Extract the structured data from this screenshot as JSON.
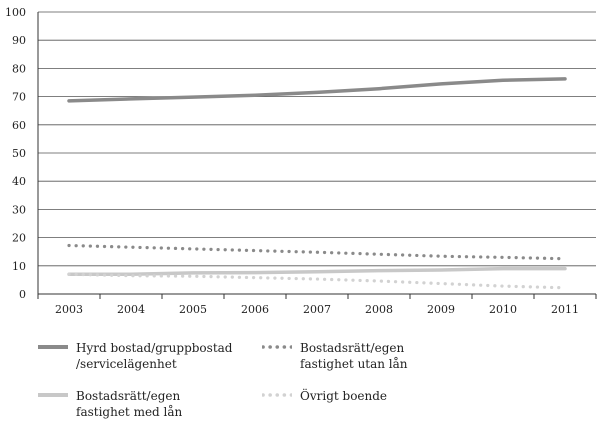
{
  "chart_data": {
    "type": "line",
    "title": "",
    "xlabel": "",
    "ylabel": "",
    "x": [
      "2003",
      "2004",
      "2005",
      "2006",
      "2007",
      "2008",
      "2009",
      "2010",
      "2011"
    ],
    "ylim": [
      0,
      100
    ],
    "yticks": [
      "0",
      "10",
      "20",
      "30",
      "40",
      "50",
      "60",
      "70",
      "80",
      "90",
      "100"
    ],
    "grid": true,
    "legend_position": "bottom",
    "series": [
      {
        "name": "Hyrd bostad/gruppbostad\n/servicelägenhet",
        "values": [
          68.5,
          69.2,
          69.8,
          70.5,
          71.5,
          72.8,
          74.5,
          75.8,
          76.3
        ],
        "color": "#8a8a8a",
        "style": "solid"
      },
      {
        "name": "Bostadsrätt/egen\nfastighet utan lån",
        "values": [
          17.2,
          16.6,
          16.0,
          15.4,
          14.8,
          14.1,
          13.4,
          13.0,
          12.5
        ],
        "color": "#8a8a8a",
        "style": "dotted"
      },
      {
        "name": "Bostadsrätt/egen\nfastighet med lån",
        "values": [
          7.0,
          7.0,
          7.5,
          7.6,
          7.9,
          8.3,
          8.5,
          9.0,
          9.0
        ],
        "color": "#c8c8c8",
        "style": "solid"
      },
      {
        "name": "Övrigt boende",
        "values": [
          7.0,
          6.5,
          6.3,
          5.8,
          5.3,
          4.6,
          3.7,
          2.8,
          2.2
        ],
        "color": "#d2d2d2",
        "style": "dotted"
      }
    ]
  }
}
